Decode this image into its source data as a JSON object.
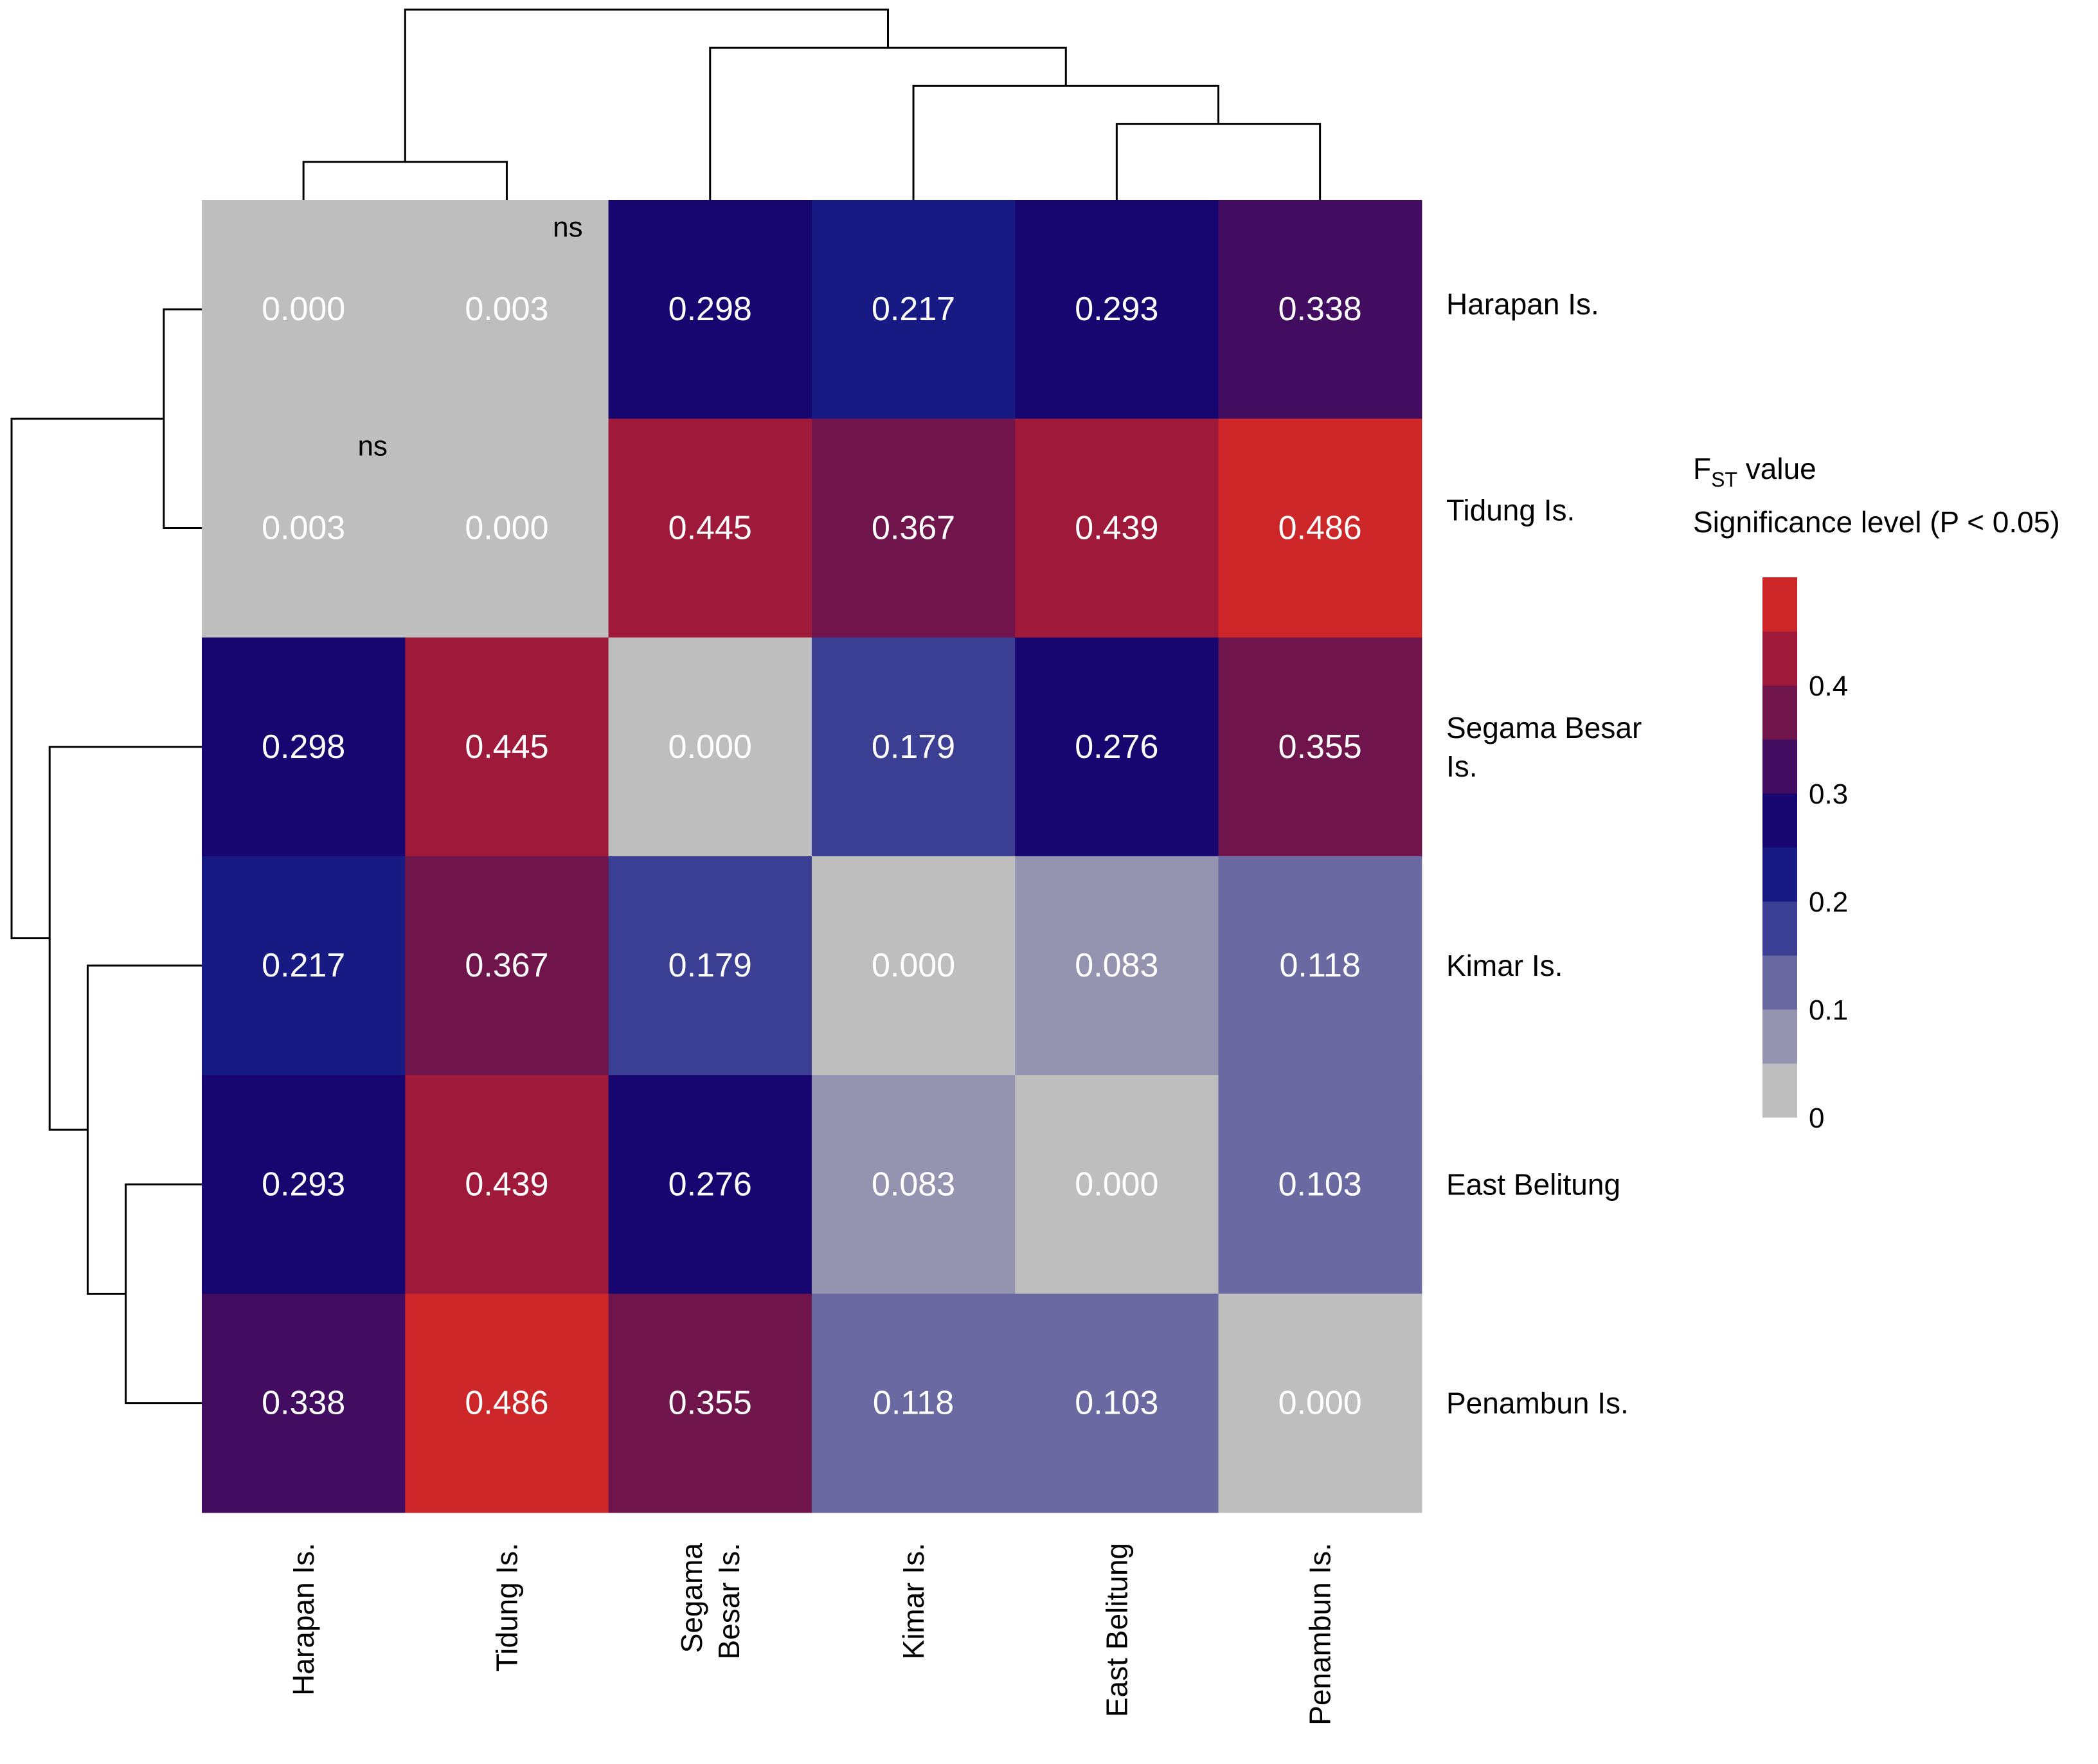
{
  "chart_data": {
    "type": "heatmap",
    "title": "",
    "populations": [
      "Harapan Is.",
      "Tidung Is.",
      "Segama Besar Is.",
      "Kimar Is.",
      "East Belitung",
      "Penambun Is."
    ],
    "row_labels": [
      [
        "Harapan Is."
      ],
      [
        "Tidung Is."
      ],
      [
        "Segama Besar",
        "Is."
      ],
      [
        "Kimar Is."
      ],
      [
        "East Belitung"
      ],
      [
        "Penambun Is."
      ]
    ],
    "column_labels": [
      [
        "Harapan Is."
      ],
      [
        "Tidung Is."
      ],
      [
        "Segama",
        "Besar Is."
      ],
      [
        "Kimar Is."
      ],
      [
        "East Belitung"
      ],
      [
        "Penambun Is."
      ]
    ],
    "values": [
      [
        0.0,
        0.003,
        0.298,
        0.217,
        0.293,
        0.338
      ],
      [
        0.003,
        0.0,
        0.445,
        0.367,
        0.439,
        0.486
      ],
      [
        0.298,
        0.445,
        0.0,
        0.179,
        0.276,
        0.355
      ],
      [
        0.217,
        0.367,
        0.179,
        0.0,
        0.083,
        0.118
      ],
      [
        0.293,
        0.439,
        0.276,
        0.083,
        0.0,
        0.103
      ],
      [
        0.338,
        0.486,
        0.355,
        0.118,
        0.103,
        0.0
      ]
    ],
    "value_labels": [
      [
        "0.000",
        "0.003",
        "0.298",
        "0.217",
        "0.293",
        "0.338"
      ],
      [
        "0.003",
        "0.000",
        "0.445",
        "0.367",
        "0.439",
        "0.486"
      ],
      [
        "0.298",
        "0.445",
        "0.000",
        "0.179",
        "0.276",
        "0.355"
      ],
      [
        "0.217",
        "0.367",
        "0.179",
        "0.000",
        "0.083",
        "0.118"
      ],
      [
        "0.293",
        "0.439",
        "0.276",
        "0.083",
        "0.000",
        "0.103"
      ],
      [
        "0.338",
        "0.486",
        "0.355",
        "0.118",
        "0.103",
        "0.000"
      ]
    ],
    "nonsignificant_cells": [
      [
        0,
        1
      ],
      [
        1,
        0
      ]
    ],
    "ns_label": "ns",
    "legend": {
      "title_main": "F",
      "title_sub": "ST",
      "title_rest": " value",
      "subtitle": "Significance level (P < 0.05)",
      "ticks": [
        0,
        0.1,
        0.2,
        0.3,
        0.4
      ],
      "tick_labels": [
        "0",
        "0.1",
        "0.2",
        "0.3",
        "0.4"
      ],
      "range": [
        0,
        0.5
      ],
      "bins": [
        {
          "from": 0.0,
          "to": 0.05,
          "color": "#bebebe"
        },
        {
          "from": 0.05,
          "to": 0.1,
          "color": "#9594b0"
        },
        {
          "from": 0.1,
          "to": 0.15,
          "color": "#6a69a1"
        },
        {
          "from": 0.15,
          "to": 0.2,
          "color": "#3b3f93"
        },
        {
          "from": 0.2,
          "to": 0.25,
          "color": "#171a82"
        },
        {
          "from": 0.25,
          "to": 0.3,
          "color": "#170670"
        },
        {
          "from": 0.3,
          "to": 0.35,
          "color": "#420c60"
        },
        {
          "from": 0.35,
          "to": 0.4,
          "color": "#6f154c"
        },
        {
          "from": 0.4,
          "to": 0.45,
          "color": "#9f1a3a"
        },
        {
          "from": 0.45,
          "to": 0.5,
          "color": "#cd2628"
        }
      ]
    },
    "dendrogram": {
      "leaf_order": [
        "Harapan Is.",
        "Tidung Is.",
        "Segama Besar Is.",
        "Kimar Is.",
        "East Belitung",
        "Penambun Is."
      ],
      "merges": [
        {
          "a": "East Belitung",
          "b": "Penambun Is.",
          "height": 0.103
        },
        {
          "a": "Kimar Is.",
          "b": "East Belitung + Penambun Is.",
          "height": 0.118
        },
        {
          "a": "Harapan Is.",
          "b": "Tidung Is.",
          "height": 0.003
        },
        {
          "a": "Segama Besar Is.",
          "b": "Kimar Is. + East Belitung + Penambun Is.",
          "height": 0.179
        },
        {
          "a": "Harapan Is. + Tidung Is.",
          "b": "Segama Besar Is. + rest",
          "height": 0.486
        }
      ]
    }
  }
}
